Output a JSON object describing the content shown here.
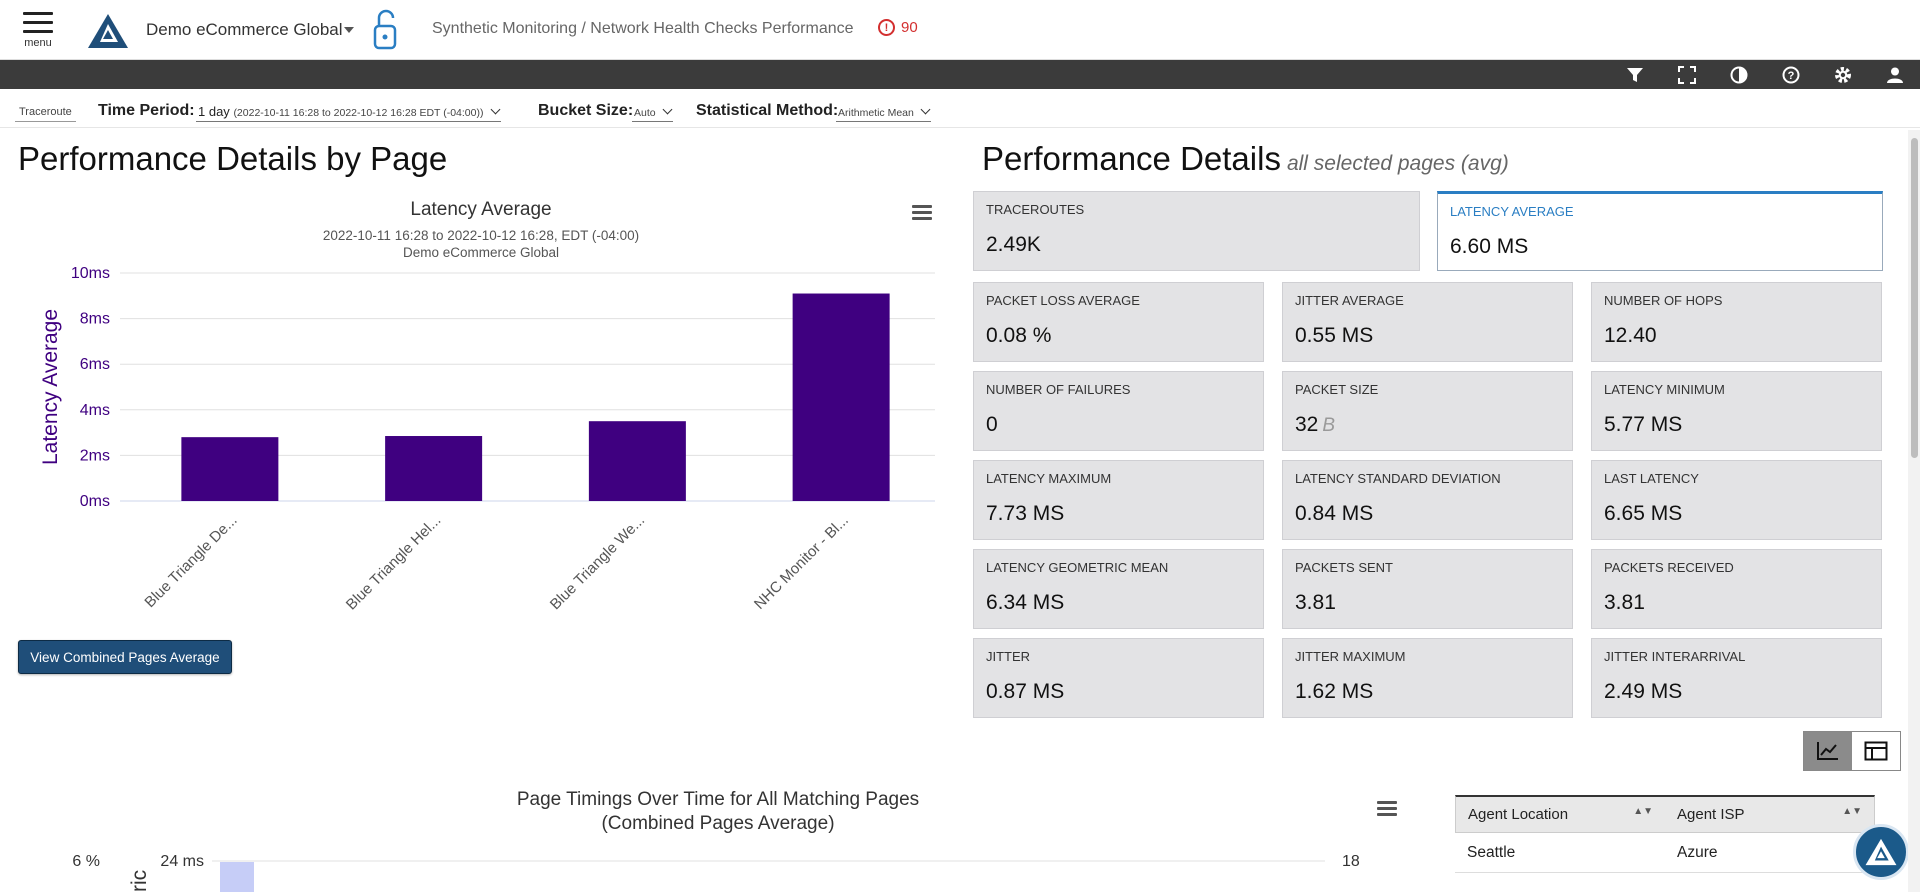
{
  "header": {
    "menu_label": "menu",
    "org_name": "Demo eCommerce Global",
    "breadcrumb": "Synthetic Monitoring / Network Health Checks Performance",
    "alert_count": "90"
  },
  "filters": {
    "chip": "Traceroute",
    "time_period_label": "Time Period:",
    "time_period_value": "1 day",
    "time_period_range": "(2022-10-11 16:28 to 2022-10-12 16:28 EDT (-04:00))",
    "bucket_label": "Bucket Size:",
    "bucket_value": "Auto",
    "stat_label": "Statistical Method:",
    "stat_value": "Arithmetic Mean"
  },
  "left": {
    "heading": "Performance Details by Page",
    "button_label": "View Combined Pages Average"
  },
  "chart_data": [
    {
      "type": "bar",
      "title": "Latency Average",
      "subtitle": "2022-10-11 16:28 to 2022-10-12 16:28, EDT (-04:00)",
      "subtitle2": "Demo eCommerce Global",
      "ylabel": "Latency Average",
      "ylim": [
        0,
        10
      ],
      "yticks": [
        "0ms",
        "2ms",
        "4ms",
        "6ms",
        "8ms",
        "10ms"
      ],
      "categories": [
        "Blue Triangle De...",
        "Blue Triangle Hel...",
        "Blue Triangle We...",
        "NHC Monitor - Bl..."
      ],
      "values": [
        2.8,
        2.85,
        3.5,
        9.1
      ],
      "color": "#3f0080",
      "grid": true
    },
    {
      "type": "line",
      "title": "Page Timings Over Time for All Matching Pages",
      "subtitle": "(Combined Pages Average)",
      "left_tick_pct": "6 %",
      "left_tick_ms": "24 ms",
      "right_tick": "18",
      "ylabel_partial": "ric"
    }
  ],
  "right": {
    "heading": "Performance Details",
    "heading_note": "all selected pages (avg)",
    "cards": [
      {
        "label": "TRACEROUTES",
        "value": "2.49K",
        "unit": ""
      },
      {
        "label": "LATENCY AVERAGE",
        "value": "6.60 MS",
        "unit": ""
      },
      {
        "label": "PACKET LOSS AVERAGE",
        "value": "0.08 %",
        "unit": ""
      },
      {
        "label": "JITTER AVERAGE",
        "value": "0.55 MS",
        "unit": ""
      },
      {
        "label": "NUMBER OF HOPS",
        "value": "12.40",
        "unit": ""
      },
      {
        "label": "NUMBER OF FAILURES",
        "value": "0",
        "unit": ""
      },
      {
        "label": "PACKET SIZE",
        "value": "32",
        "unit": "B"
      },
      {
        "label": "LATENCY MINIMUM",
        "value": "5.77 MS",
        "unit": ""
      },
      {
        "label": "LATENCY MAXIMUM",
        "value": "7.73 MS",
        "unit": ""
      },
      {
        "label": "LATENCY STANDARD DEVIATION",
        "value": "0.84 MS",
        "unit": ""
      },
      {
        "label": "LAST LATENCY",
        "value": "6.65 MS",
        "unit": ""
      },
      {
        "label": "LATENCY GEOMETRIC MEAN",
        "value": "6.34 MS",
        "unit": ""
      },
      {
        "label": "PACKETS SENT",
        "value": "3.81",
        "unit": ""
      },
      {
        "label": "PACKETS RECEIVED",
        "value": "3.81",
        "unit": ""
      },
      {
        "label": "JITTER",
        "value": "0.87 MS",
        "unit": ""
      },
      {
        "label": "JITTER MAXIMUM",
        "value": "1.62 MS",
        "unit": ""
      },
      {
        "label": "JITTER INTERARRIVAL",
        "value": "2.49 MS",
        "unit": ""
      }
    ]
  },
  "table": {
    "columns": [
      "Agent Location",
      "Agent ISP"
    ],
    "rows": [
      [
        "Seattle",
        "Azure"
      ]
    ]
  },
  "colors": {
    "brand": "#1f4e79",
    "bar": "#3f0080",
    "alert": "#d32f2f",
    "toolbar": "#3b3b3b"
  }
}
